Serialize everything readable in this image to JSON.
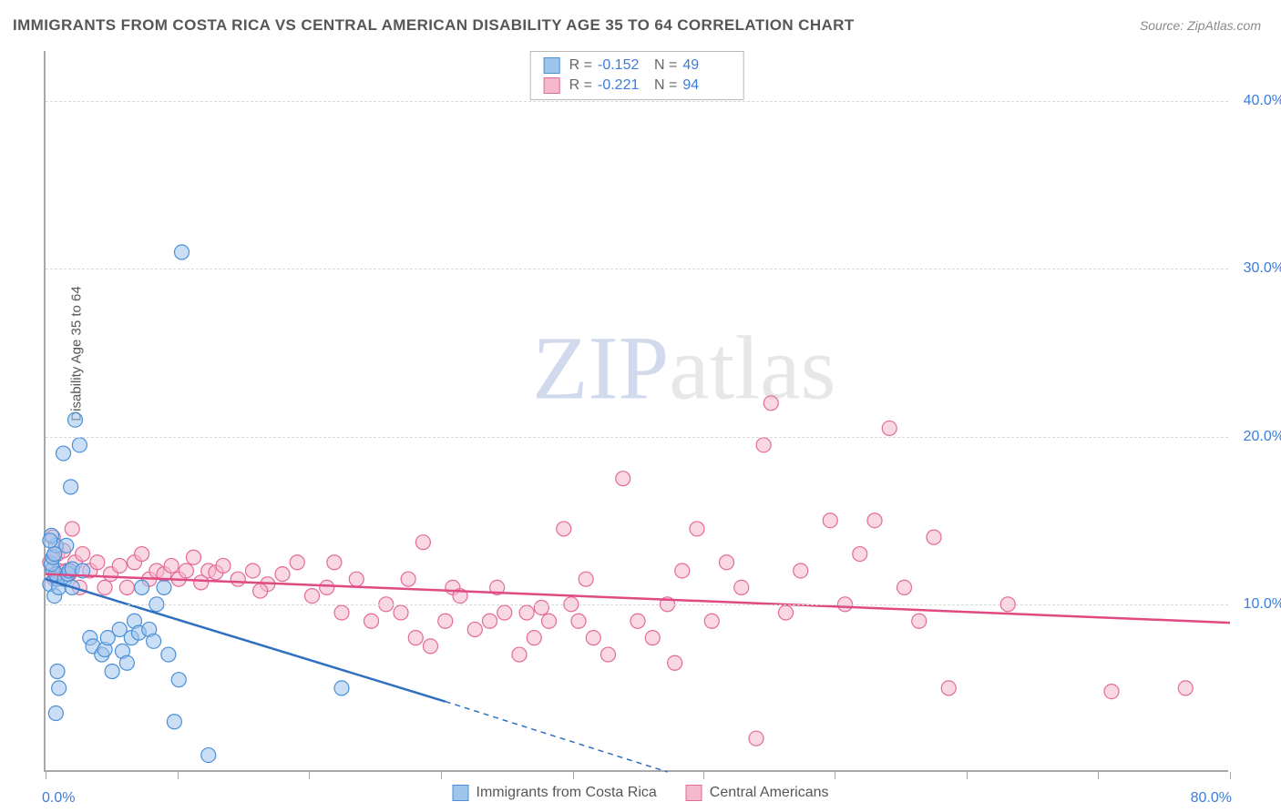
{
  "title": "IMMIGRANTS FROM COSTA RICA VS CENTRAL AMERICAN DISABILITY AGE 35 TO 64 CORRELATION CHART",
  "source": "Source: ZipAtlas.com",
  "ylabel": "Disability Age 35 to 64",
  "watermark_a": "ZIP",
  "watermark_b": "atlas",
  "chart": {
    "type": "scatter",
    "xlim": [
      0,
      80
    ],
    "ylim": [
      0,
      43
    ],
    "ytick_values": [
      10,
      20,
      30,
      40
    ],
    "ytick_labels": [
      "10.0%",
      "20.0%",
      "30.0%",
      "40.0%"
    ],
    "xtick_values": [
      0,
      8.9,
      17.8,
      26.7,
      35.6,
      44.4,
      53.3,
      62.2,
      71.1,
      80
    ],
    "x_axis_left_label": "0.0%",
    "x_axis_right_label": "80.0%",
    "background_color": "#ffffff",
    "grid_color": "#d8d8d8",
    "axis_value_color": "#3d7cd8",
    "marker_radius": 8,
    "marker_opacity": 0.55,
    "series": [
      {
        "name": "Immigrants from Costa Rica",
        "color_fill": "#9ec5ed",
        "color_stroke": "#4a8fd8",
        "line_color": "#2f6fc0",
        "R": "-0.152",
        "N": "49",
        "regression": {
          "x1": 0,
          "y1": 11.5,
          "x2": 27,
          "y2": 4.2,
          "dash_x2": 42,
          "dash_y2": 0
        },
        "points": [
          [
            0.3,
            11.2
          ],
          [
            0.5,
            12.1
          ],
          [
            0.8,
            11.5
          ],
          [
            0.6,
            10.5
          ],
          [
            0.7,
            11.8
          ],
          [
            0.4,
            12.4
          ],
          [
            0.9,
            11.0
          ],
          [
            0.5,
            12.8
          ],
          [
            0.7,
            13.5
          ],
          [
            0.4,
            14.1
          ],
          [
            0.6,
            13.0
          ],
          [
            0.3,
            13.8
          ],
          [
            1.3,
            11.5
          ],
          [
            1.5,
            11.8
          ],
          [
            1.6,
            12.0
          ],
          [
            1.8,
            12.1
          ],
          [
            1.4,
            13.5
          ],
          [
            1.7,
            17.0
          ],
          [
            2.0,
            21.0
          ],
          [
            1.2,
            19.0
          ],
          [
            2.3,
            19.5
          ],
          [
            1.8,
            11.0
          ],
          [
            2.5,
            12.0
          ],
          [
            3.0,
            8.0
          ],
          [
            3.2,
            7.5
          ],
          [
            3.8,
            7.0
          ],
          [
            4.0,
            7.3
          ],
          [
            4.2,
            8.0
          ],
          [
            4.5,
            6.0
          ],
          [
            5.0,
            8.5
          ],
          [
            5.2,
            7.2
          ],
          [
            5.5,
            6.5
          ],
          [
            5.8,
            8.0
          ],
          [
            6.0,
            9.0
          ],
          [
            6.3,
            8.3
          ],
          [
            6.5,
            11.0
          ],
          [
            7.0,
            8.5
          ],
          [
            7.3,
            7.8
          ],
          [
            7.5,
            10.0
          ],
          [
            8.0,
            11.0
          ],
          [
            8.3,
            7.0
          ],
          [
            8.7,
            3.0
          ],
          [
            9.0,
            5.5
          ],
          [
            0.7,
            3.5
          ],
          [
            0.8,
            6.0
          ],
          [
            0.9,
            5.0
          ],
          [
            9.2,
            31.0
          ],
          [
            11.0,
            1.0
          ],
          [
            20.0,
            5.0
          ]
        ]
      },
      {
        "name": "Central Americans",
        "color_fill": "#f5b8cc",
        "color_stroke": "#e36a96",
        "line_color": "#e04a82",
        "R": "-0.221",
        "N": "94",
        "regression": {
          "x1": 0,
          "y1": 11.8,
          "x2": 80,
          "y2": 8.9
        },
        "points": [
          [
            0.3,
            12.5
          ],
          [
            0.5,
            14.0
          ],
          [
            0.8,
            13.0
          ],
          [
            0.6,
            11.5
          ],
          [
            0.9,
            12.0
          ],
          [
            1.2,
            13.2
          ],
          [
            1.4,
            12.0
          ],
          [
            1.6,
            11.8
          ],
          [
            1.8,
            14.5
          ],
          [
            2.0,
            12.5
          ],
          [
            2.3,
            11.0
          ],
          [
            2.5,
            13.0
          ],
          [
            3.0,
            12.0
          ],
          [
            3.5,
            12.5
          ],
          [
            4.0,
            11.0
          ],
          [
            4.4,
            11.8
          ],
          [
            5.0,
            12.3
          ],
          [
            5.5,
            11.0
          ],
          [
            6.0,
            12.5
          ],
          [
            6.5,
            13.0
          ],
          [
            7.0,
            11.5
          ],
          [
            7.5,
            12.0
          ],
          [
            8.0,
            11.8
          ],
          [
            8.5,
            12.3
          ],
          [
            9.0,
            11.5
          ],
          [
            9.5,
            12.0
          ],
          [
            10.0,
            12.8
          ],
          [
            10.5,
            11.3
          ],
          [
            11.0,
            12.0
          ],
          [
            11.5,
            11.9
          ],
          [
            12.0,
            12.3
          ],
          [
            13.0,
            11.5
          ],
          [
            14.0,
            12.0
          ],
          [
            15.0,
            11.2
          ],
          [
            16.0,
            11.8
          ],
          [
            17.0,
            12.5
          ],
          [
            18.0,
            10.5
          ],
          [
            19.0,
            11.0
          ],
          [
            20.0,
            9.5
          ],
          [
            21.0,
            11.5
          ],
          [
            22.0,
            9.0
          ],
          [
            23.0,
            10.0
          ],
          [
            24.0,
            9.5
          ],
          [
            24.5,
            11.5
          ],
          [
            25.0,
            8.0
          ],
          [
            25.5,
            13.7
          ],
          [
            26.0,
            7.5
          ],
          [
            27.0,
            9.0
          ],
          [
            27.5,
            11.0
          ],
          [
            28.0,
            10.5
          ],
          [
            29.0,
            8.5
          ],
          [
            30.0,
            9.0
          ],
          [
            30.5,
            11.0
          ],
          [
            31.0,
            9.5
          ],
          [
            32.0,
            7.0
          ],
          [
            32.5,
            9.5
          ],
          [
            33.0,
            8.0
          ],
          [
            33.5,
            9.8
          ],
          [
            34.0,
            9.0
          ],
          [
            35.0,
            14.5
          ],
          [
            35.5,
            10.0
          ],
          [
            36.0,
            9.0
          ],
          [
            37.0,
            8.0
          ],
          [
            38.0,
            7.0
          ],
          [
            39.0,
            17.5
          ],
          [
            40.0,
            9.0
          ],
          [
            41.0,
            8.0
          ],
          [
            42.0,
            10.0
          ],
          [
            43.0,
            12.0
          ],
          [
            44.0,
            14.5
          ],
          [
            45.0,
            9.0
          ],
          [
            46.0,
            12.5
          ],
          [
            47.0,
            11.0
          ],
          [
            48.0,
            2.0
          ],
          [
            48.5,
            19.5
          ],
          [
            49.0,
            22.0
          ],
          [
            50.0,
            9.5
          ],
          [
            51.0,
            12.0
          ],
          [
            53.0,
            15.0
          ],
          [
            54.0,
            10.0
          ],
          [
            55.0,
            13.0
          ],
          [
            56.0,
            15.0
          ],
          [
            57.0,
            20.5
          ],
          [
            59.0,
            9.0
          ],
          [
            60.0,
            14.0
          ],
          [
            61.0,
            5.0
          ],
          [
            65.0,
            10.0
          ],
          [
            72.0,
            4.8
          ],
          [
            77.0,
            5.0
          ],
          [
            58.0,
            11.0
          ],
          [
            36.5,
            11.5
          ],
          [
            42.5,
            6.5
          ],
          [
            19.5,
            12.5
          ],
          [
            14.5,
            10.8
          ]
        ]
      }
    ]
  },
  "stats_labels": {
    "R": "R =",
    "N": "N ="
  },
  "legend": {
    "item1": "Immigrants from Costa Rica",
    "item2": "Central Americans"
  }
}
